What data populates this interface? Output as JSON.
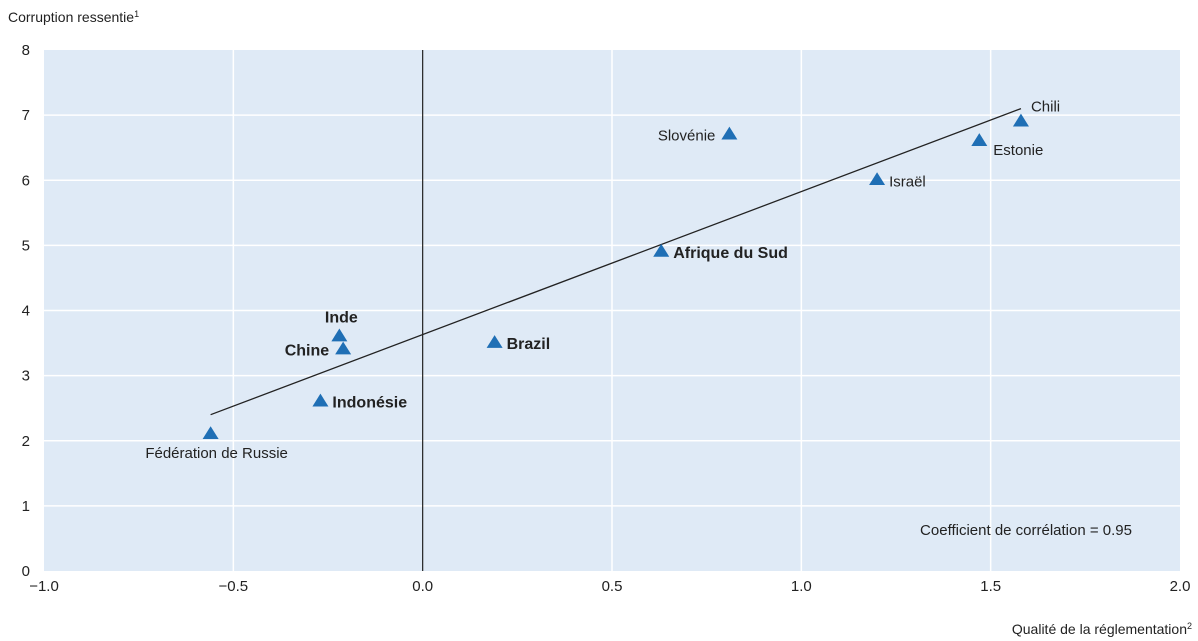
{
  "chart_data": {
    "type": "scatter",
    "ylabel": "Corruption ressentie",
    "ylabel_note": "1",
    "xlabel": "Qualité de la réglementation",
    "xlabel_note": "2",
    "xlim": [
      -1.0,
      2.0
    ],
    "ylim": [
      0,
      8
    ],
    "x_ticks": [
      "−1.0",
      "−0.5",
      "0.0",
      "0.5",
      "1.0",
      "1.5",
      "2.0"
    ],
    "x_tick_values": [
      -1.0,
      -0.5,
      0.0,
      0.5,
      1.0,
      1.5,
      2.0
    ],
    "y_ticks": [
      "0",
      "1",
      "2",
      "3",
      "4",
      "5",
      "6",
      "7",
      "8"
    ],
    "y_tick_values": [
      0,
      1,
      2,
      3,
      4,
      5,
      6,
      7,
      8
    ],
    "grid": true,
    "background_color": "#dfeaf6",
    "marker_color": "#1f6fb5",
    "points": [
      {
        "label": "Fédération de Russie",
        "x": -0.56,
        "y": 2.1,
        "bold": false,
        "label_pos": "below"
      },
      {
        "label": "Indonésie",
        "x": -0.27,
        "y": 2.6,
        "bold": true,
        "label_pos": "right"
      },
      {
        "label": "Chine",
        "x": -0.21,
        "y": 3.4,
        "bold": true,
        "label_pos": "left"
      },
      {
        "label": "Inde",
        "x": -0.22,
        "y": 3.6,
        "bold": true,
        "label_pos": "above"
      },
      {
        "label": "Brazil",
        "x": 0.19,
        "y": 3.5,
        "bold": true,
        "label_pos": "right"
      },
      {
        "label": "Afrique du Sud",
        "x": 0.63,
        "y": 4.9,
        "bold": true,
        "label_pos": "right"
      },
      {
        "label": "Slovénie",
        "x": 0.81,
        "y": 6.7,
        "bold": false,
        "label_pos": "left"
      },
      {
        "label": "Israël",
        "x": 1.2,
        "y": 6.0,
        "bold": false,
        "label_pos": "right"
      },
      {
        "label": "Estonie",
        "x": 1.47,
        "y": 6.6,
        "bold": false,
        "label_pos": "right-below"
      },
      {
        "label": "Chili",
        "x": 1.58,
        "y": 6.9,
        "bold": false,
        "label_pos": "right-above"
      }
    ],
    "trendline": {
      "x1": -0.56,
      "y1": 2.4,
      "x2": 1.58,
      "y2": 7.1
    },
    "annotation": "Coefficient de corrélation = 0.95"
  }
}
